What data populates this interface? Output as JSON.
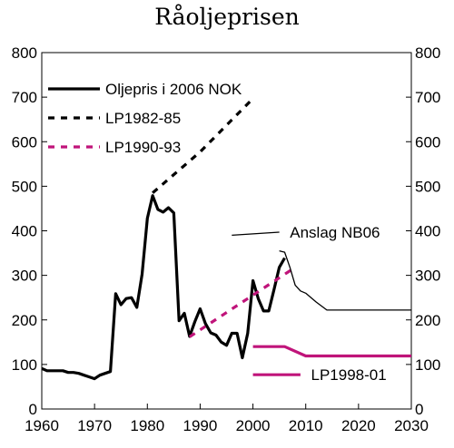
{
  "chart_data": {
    "type": "line",
    "title": "Råoljeprisen",
    "xlabel": "",
    "ylabel": "",
    "xlim": [
      1960,
      2030
    ],
    "ylim": [
      0,
      800
    ],
    "x_ticks": [
      1960,
      1970,
      1980,
      1990,
      2000,
      2010,
      2020,
      2030
    ],
    "y_ticks": [
      0,
      100,
      200,
      300,
      400,
      500,
      600,
      700,
      800
    ],
    "grid": false,
    "colors": {
      "black": "#000000",
      "magenta": "#c0147a"
    },
    "series": [
      {
        "name": "Oljepris i 2006 NOK",
        "style": "solid",
        "color": "black",
        "width": "thick",
        "points": [
          [
            1960,
            91
          ],
          [
            1961,
            86
          ],
          [
            1962,
            86
          ],
          [
            1963,
            86
          ],
          [
            1964,
            86
          ],
          [
            1965,
            82
          ],
          [
            1966,
            82
          ],
          [
            1967,
            80
          ],
          [
            1968,
            76
          ],
          [
            1969,
            72
          ],
          [
            1970,
            68
          ],
          [
            1971,
            76
          ],
          [
            1972,
            80
          ],
          [
            1973,
            84
          ],
          [
            1974,
            259
          ],
          [
            1975,
            234
          ],
          [
            1976,
            248
          ],
          [
            1977,
            250
          ],
          [
            1978,
            228
          ],
          [
            1979,
            303
          ],
          [
            1980,
            428
          ],
          [
            1981,
            479
          ],
          [
            1982,
            448
          ],
          [
            1983,
            442
          ],
          [
            1984,
            452
          ],
          [
            1985,
            440
          ],
          [
            1986,
            198
          ],
          [
            1987,
            215
          ],
          [
            1988,
            163
          ],
          [
            1989,
            196
          ],
          [
            1990,
            225
          ],
          [
            1991,
            192
          ],
          [
            1992,
            171
          ],
          [
            1993,
            166
          ],
          [
            1994,
            150
          ],
          [
            1995,
            143
          ],
          [
            1996,
            170
          ],
          [
            1997,
            170
          ],
          [
            1998,
            115
          ],
          [
            1999,
            170
          ],
          [
            2000,
            288
          ],
          [
            2001,
            248
          ],
          [
            2002,
            220
          ],
          [
            2003,
            220
          ],
          [
            2004,
            268
          ],
          [
            2005,
            318
          ],
          [
            2006,
            339
          ]
        ]
      },
      {
        "name": "LP1982-85",
        "style": "dashed",
        "color": "black",
        "width": "thick",
        "points": [
          [
            1981,
            485
          ],
          [
            1990,
            577
          ],
          [
            2000,
            697
          ]
        ]
      },
      {
        "name": "LP1990-93",
        "style": "dashed",
        "color": "magenta",
        "width": "thick",
        "points": [
          [
            1988,
            162
          ],
          [
            2008,
            318
          ]
        ]
      },
      {
        "name": "Anslag NB06",
        "style": "solid",
        "color": "black",
        "width": "thin",
        "points": [
          [
            2005,
            355
          ],
          [
            2006,
            352
          ],
          [
            2007,
            318
          ],
          [
            2008,
            278
          ],
          [
            2009,
            265
          ],
          [
            2010,
            260
          ],
          [
            2012,
            240
          ],
          [
            2014,
            222
          ],
          [
            2020,
            222
          ],
          [
            2030,
            222
          ]
        ]
      },
      {
        "name": "LP1998-01",
        "style": "solid",
        "color": "magenta",
        "width": "thick",
        "points": [
          [
            2000,
            140
          ],
          [
            2006,
            140
          ],
          [
            2010,
            119
          ],
          [
            2030,
            119
          ]
        ]
      }
    ],
    "legend": [
      {
        "label": "Oljepris i 2006 NOK",
        "style": "solid",
        "color": "black",
        "width": "thick"
      },
      {
        "label": "LP1982-85",
        "style": "dashed",
        "color": "black",
        "width": "thick"
      },
      {
        "label": "LP1990-93",
        "style": "dashed",
        "color": "magenta",
        "width": "thick"
      }
    ],
    "annotations": [
      {
        "label": "Anslag NB06",
        "pointer_from": [
          1996,
          390
        ],
        "pointer_to": [
          2005,
          397
        ],
        "text_at": [
          2007,
          397
        ],
        "color": "black",
        "width": "thin"
      },
      {
        "label": "LP1998-01",
        "pointer_from": [
          2000,
          77
        ],
        "pointer_to": [
          2009,
          77
        ],
        "text_at": [
          2011,
          77
        ],
        "color": "magenta",
        "width": "thick"
      }
    ]
  }
}
